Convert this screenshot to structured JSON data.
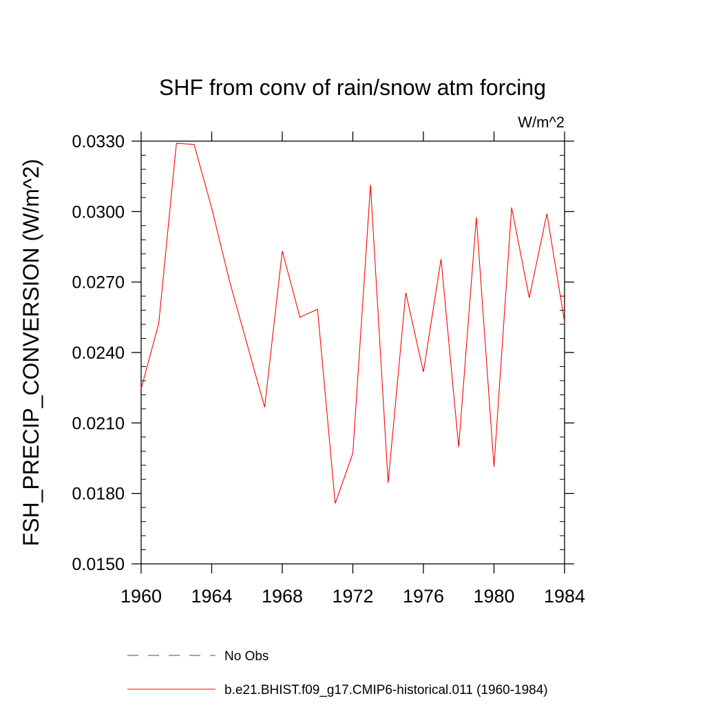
{
  "chart_data": {
    "type": "line",
    "title": "SHF from conv of rain/snow atm forcing",
    "units_label": "W/m^2",
    "ylabel": "FSH_PRECIP_CONVERSION  (W/m^2)",
    "xlabel": "",
    "xlim": [
      1960,
      1984
    ],
    "ylim": [
      0.015,
      0.033
    ],
    "x_ticks": [
      1960,
      1964,
      1968,
      1972,
      1976,
      1980,
      1984
    ],
    "x_tick_labels": [
      "1960",
      "1964",
      "1968",
      "1972",
      "1976",
      "1980",
      "1984"
    ],
    "y_ticks": [
      0.015,
      0.018,
      0.021,
      0.024,
      0.027,
      0.03,
      0.033
    ],
    "y_tick_labels": [
      "0.0150",
      "0.0180",
      "0.0210",
      "0.0240",
      "0.0270",
      "0.0300",
      "0.0330"
    ],
    "grid": false,
    "legend_position": "bottom",
    "series": [
      {
        "name": "No Obs",
        "style": "dashed",
        "color": "#3b3bb8",
        "x": [],
        "y": []
      },
      {
        "name": "b.e21.BHIST.f09_g17.CMIP6-historical.011 (1960-1984)",
        "style": "solid",
        "color": "#ff0000",
        "x": [
          1960,
          1961,
          1962,
          1963,
          1964,
          1965,
          1966,
          1967,
          1968,
          1969,
          1970,
          1971,
          1972,
          1973,
          1974,
          1975,
          1976,
          1977,
          1978,
          1979,
          1980,
          1981,
          1982,
          1983,
          1984
        ],
        "y": [
          0.02245,
          0.02525,
          0.03291,
          0.03286,
          0.03015,
          0.02707,
          0.02437,
          0.02167,
          0.02832,
          0.0255,
          0.02584,
          0.01757,
          0.01971,
          0.03114,
          0.01845,
          0.02655,
          0.02317,
          0.02798,
          0.01997,
          0.02976,
          0.01913,
          0.03017,
          0.02633,
          0.02991,
          0.0253
        ]
      }
    ]
  }
}
